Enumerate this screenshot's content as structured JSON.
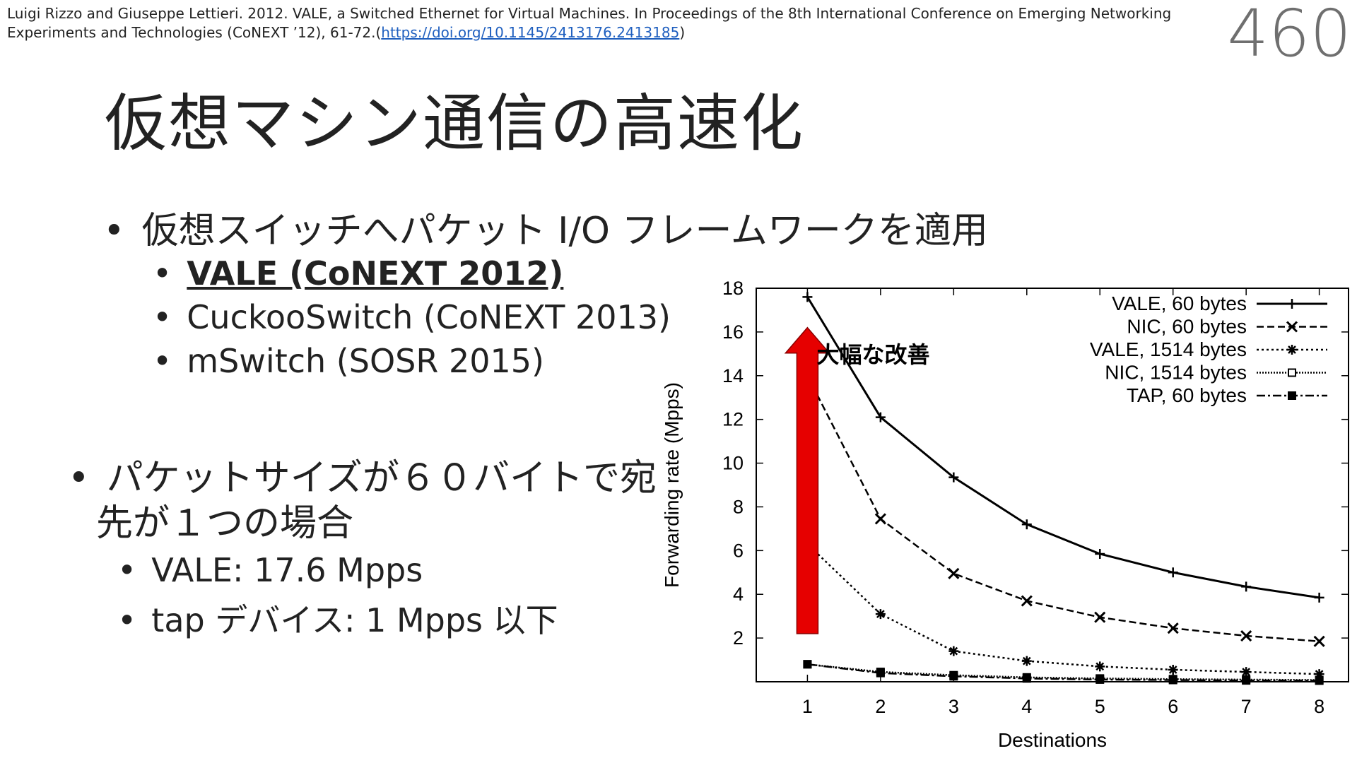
{
  "citation": {
    "text": "Luigi Rizzo and Giuseppe Lettieri. 2012. VALE, a Switched Ethernet for Virtual Machines. In Proceedings of the 8th International Conference on Emerging Networking Experiments and Technologies (CoNEXT ’12), 61-72.(",
    "link": "https://doi.org/10.1145/2413176.2413185",
    "close": ")"
  },
  "page_number": "460",
  "title": "仮想マシン通信の高速化",
  "bullets": {
    "main1": "仮想スイッチへパケット I/O フレームワークを適用",
    "sub1": [
      "VALE (CoNEXT 2012)",
      "CuckooSwitch (CoNEXT 2013)",
      "mSwitch (SOSR 2015)"
    ],
    "main2": "パケットサイズが６０バイトで宛先が１つの場合",
    "sub2": [
      "VALE: 17.6 Mpps",
      "tap デバイス: 1 Mpps 以下"
    ]
  },
  "bullet_glyph": "•",
  "colors": {
    "arrow": "#e60000",
    "text": "#222222",
    "link": "#1f5fbf",
    "page_number": "#6f6f6f"
  },
  "chart_data": {
    "type": "line",
    "title": "",
    "xlabel": "Destinations",
    "ylabel": "Forwarding rate (Mpps)",
    "x": [
      1,
      2,
      3,
      4,
      5,
      6,
      7,
      8
    ],
    "xlim": [
      0.3,
      8.4
    ],
    "ylim": [
      0,
      18
    ],
    "yticks": [
      2,
      4,
      6,
      8,
      10,
      12,
      14,
      16,
      18
    ],
    "xticks": [
      1,
      2,
      3,
      4,
      5,
      6,
      7,
      8
    ],
    "legend_position": "top-right",
    "annotation": {
      "text": "大幅な改善",
      "arrow_from_y": 2.2,
      "arrow_to_y": 16.2,
      "arrow_x": 1
    },
    "series": [
      {
        "name": "VALE, 60 bytes",
        "marker": "plus",
        "dash": "",
        "values": [
          17.6,
          12.1,
          9.35,
          7.2,
          5.85,
          5.0,
          4.35,
          3.85
        ]
      },
      {
        "name": "NIC, 60 bytes",
        "marker": "cross",
        "dash": "10,5",
        "values": [
          14.0,
          7.45,
          4.95,
          3.7,
          2.95,
          2.45,
          2.1,
          1.85
        ]
      },
      {
        "name": "VALE, 1514 bytes",
        "marker": "star",
        "dash": "3,4",
        "values": [
          6.3,
          3.1,
          1.4,
          0.95,
          0.7,
          0.55,
          0.45,
          0.35
        ]
      },
      {
        "name": "NIC, 1514 bytes",
        "marker": "square-open",
        "dash": "2,2",
        "values": [
          0.8,
          0.45,
          0.3,
          0.2,
          0.15,
          0.12,
          0.1,
          0.08
        ]
      },
      {
        "name": "TAP, 60 bytes",
        "marker": "square-filled",
        "dash": "12,4,3,4",
        "values": [
          0.8,
          0.4,
          0.25,
          0.15,
          0.1,
          0.08,
          0.06,
          0.05
        ]
      }
    ]
  }
}
